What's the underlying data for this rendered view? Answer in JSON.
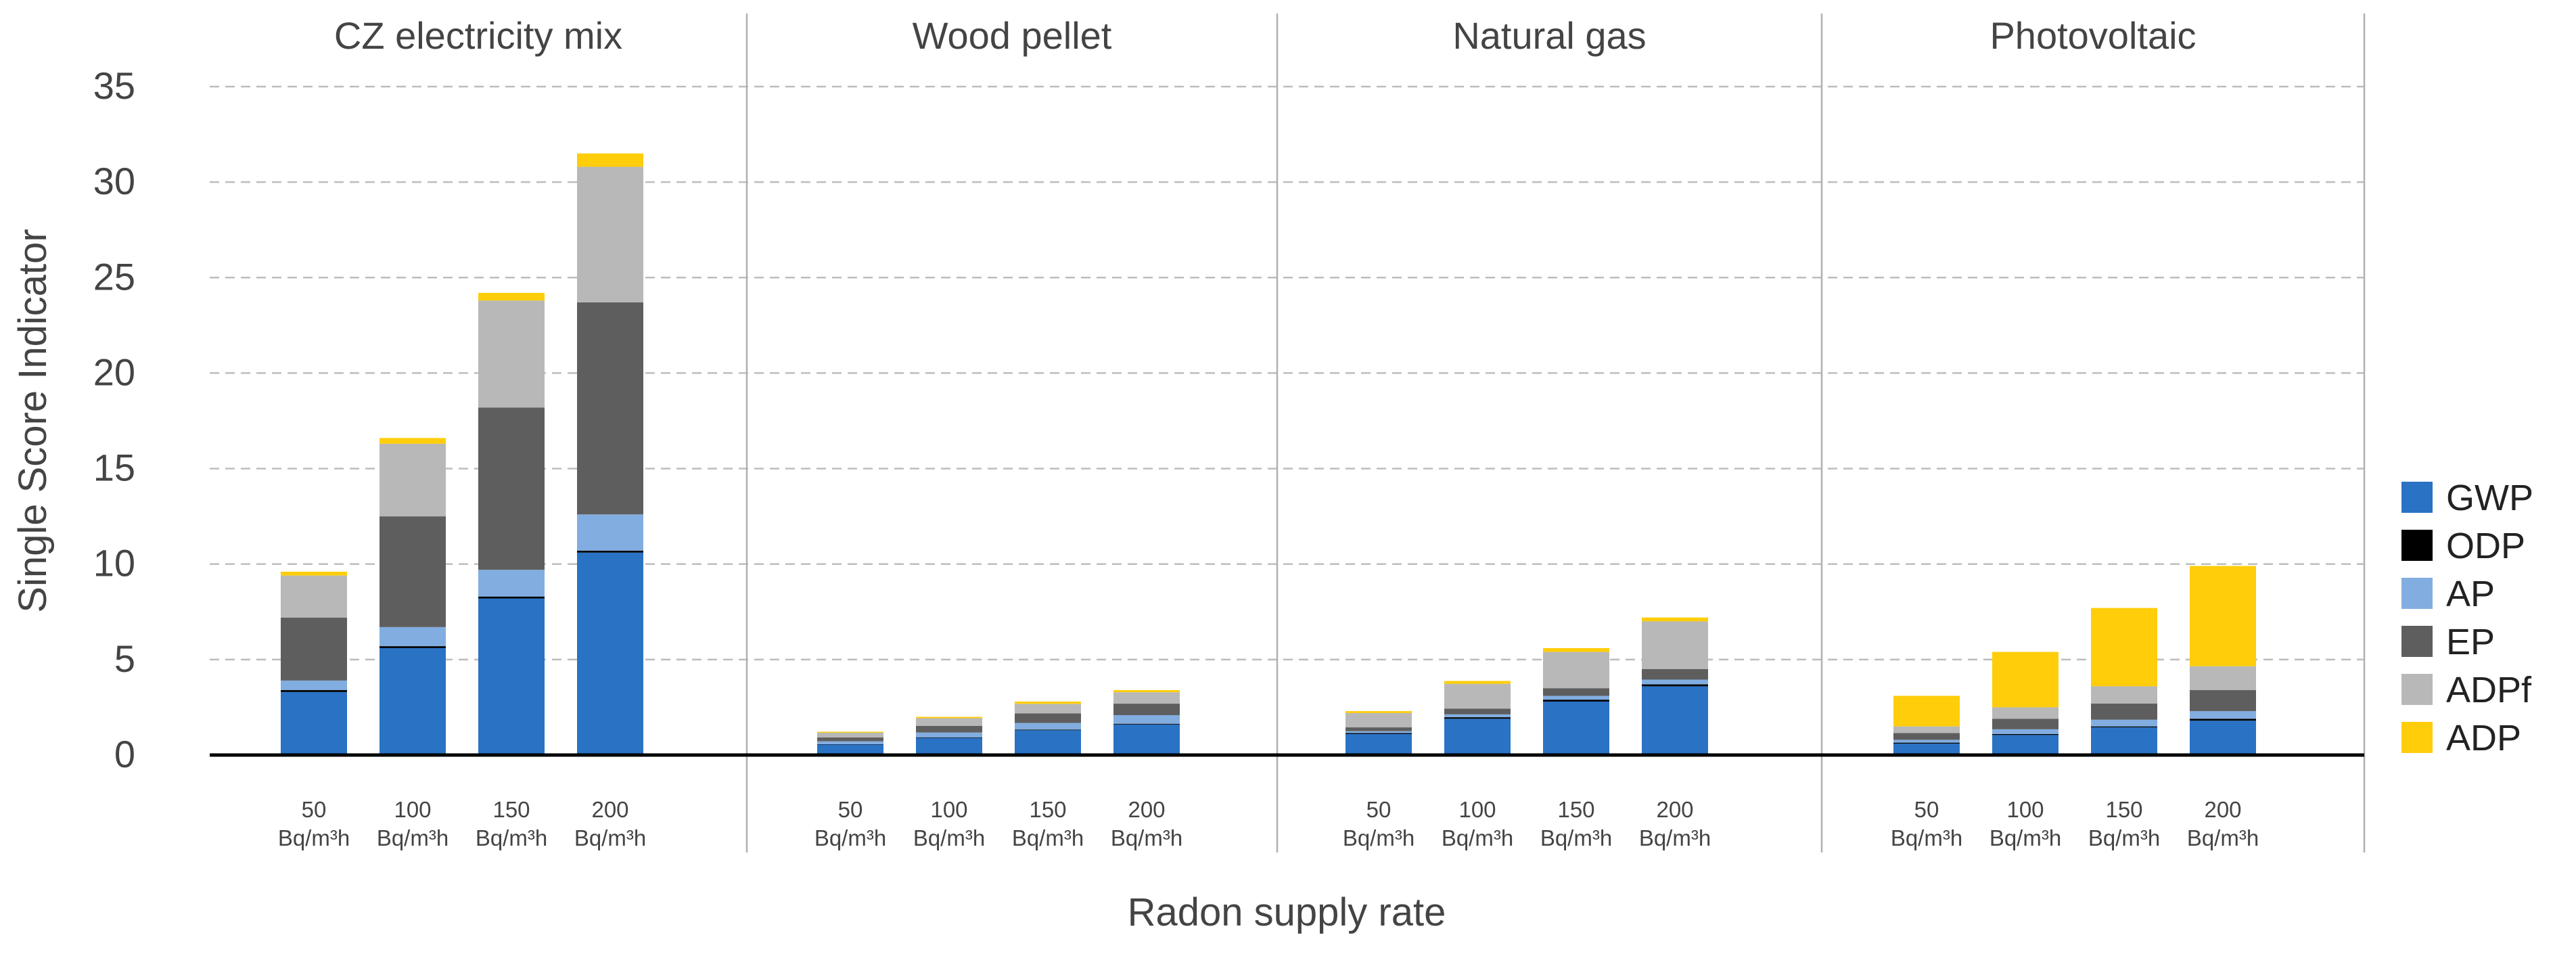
{
  "chart_data": {
    "type": "bar",
    "stacked": true,
    "ylabel": "Single Score Indicator",
    "xlabel": "Radon supply rate",
    "ylim": [
      0,
      35
    ],
    "yticks": [
      0,
      5,
      10,
      15,
      20,
      25,
      30,
      35
    ],
    "grid": true,
    "legend_position": "right",
    "category_label_line1": [
      "50",
      "100",
      "150",
      "200"
    ],
    "category_label_line2": [
      "Bq/m³h",
      "Bq/m³h",
      "Bq/m³h",
      "Bq/m³h"
    ],
    "series_meta": [
      {
        "name": "GWP",
        "color": "#2a72c4"
      },
      {
        "name": "ODP",
        "color": "#000000"
      },
      {
        "name": "AP",
        "color": "#82ade0"
      },
      {
        "name": "EP",
        "color": "#5e5e5e"
      },
      {
        "name": "ADPf",
        "color": "#b8b8b8"
      },
      {
        "name": "ADP",
        "color": "#ffcd0a"
      }
    ],
    "panels": [
      {
        "title": "CZ electricity mix",
        "categories": [
          "50 Bq/m³h",
          "100 Bq/m³h",
          "150 Bq/m³h",
          "200 Bq/m³h"
        ],
        "series": [
          {
            "name": "GWP",
            "values": [
              3.3,
              5.6,
              8.2,
              10.6
            ]
          },
          {
            "name": "ODP",
            "values": [
              0.1,
              0.1,
              0.1,
              0.1
            ]
          },
          {
            "name": "AP",
            "values": [
              0.5,
              1.0,
              1.4,
              1.9
            ]
          },
          {
            "name": "EP",
            "values": [
              3.3,
              5.8,
              8.5,
              11.1
            ]
          },
          {
            "name": "ADPf",
            "values": [
              2.2,
              3.8,
              5.6,
              7.1
            ]
          },
          {
            "name": "ADP",
            "values": [
              0.2,
              0.3,
              0.4,
              0.7
            ]
          }
        ]
      },
      {
        "title": "Wood pellet",
        "categories": [
          "50 Bq/m³h",
          "100 Bq/m³h",
          "150 Bq/m³h",
          "200 Bq/m³h"
        ],
        "series": [
          {
            "name": "GWP",
            "values": [
              0.55,
              0.9,
              1.3,
              1.6
            ]
          },
          {
            "name": "ODP",
            "values": [
              0.02,
              0.03,
              0.03,
              0.04
            ]
          },
          {
            "name": "AP",
            "values": [
              0.15,
              0.25,
              0.35,
              0.45
            ]
          },
          {
            "name": "EP",
            "values": [
              0.2,
              0.35,
              0.5,
              0.6
            ]
          },
          {
            "name": "ADPf",
            "values": [
              0.25,
              0.4,
              0.5,
              0.6
            ]
          },
          {
            "name": "ADP",
            "values": [
              0.05,
              0.07,
              0.12,
              0.11
            ]
          }
        ]
      },
      {
        "title": "Natural gas",
        "categories": [
          "50 Bq/m³h",
          "100 Bq/m³h",
          "150 Bq/m³h",
          "200 Bq/m³h"
        ],
        "series": [
          {
            "name": "GWP",
            "values": [
              1.1,
              1.9,
              2.8,
              3.6
            ]
          },
          {
            "name": "ODP",
            "values": [
              0.05,
              0.08,
              0.1,
              0.1
            ]
          },
          {
            "name": "AP",
            "values": [
              0.1,
              0.15,
              0.2,
              0.25
            ]
          },
          {
            "name": "EP",
            "values": [
              0.2,
              0.3,
              0.4,
              0.55
            ]
          },
          {
            "name": "ADPf",
            "values": [
              0.75,
              1.3,
              1.9,
              2.5
            ]
          },
          {
            "name": "ADP",
            "values": [
              0.1,
              0.15,
              0.2,
              0.2
            ]
          }
        ]
      },
      {
        "title": "Photovoltaic",
        "categories": [
          "50 Bq/m³h",
          "100 Bq/m³h",
          "150 Bq/m³h",
          "200 Bq/m³h"
        ],
        "series": [
          {
            "name": "GWP",
            "values": [
              0.6,
              1.05,
              1.45,
              1.8
            ]
          },
          {
            "name": "ODP",
            "values": [
              0.05,
              0.05,
              0.05,
              0.1
            ]
          },
          {
            "name": "AP",
            "values": [
              0.15,
              0.25,
              0.35,
              0.4
            ]
          },
          {
            "name": "EP",
            "values": [
              0.35,
              0.55,
              0.85,
              1.1
            ]
          },
          {
            "name": "ADPf",
            "values": [
              0.35,
              0.6,
              0.9,
              1.25
            ]
          },
          {
            "name": "ADP",
            "values": [
              1.6,
              2.9,
              4.1,
              5.25
            ]
          }
        ]
      }
    ]
  }
}
